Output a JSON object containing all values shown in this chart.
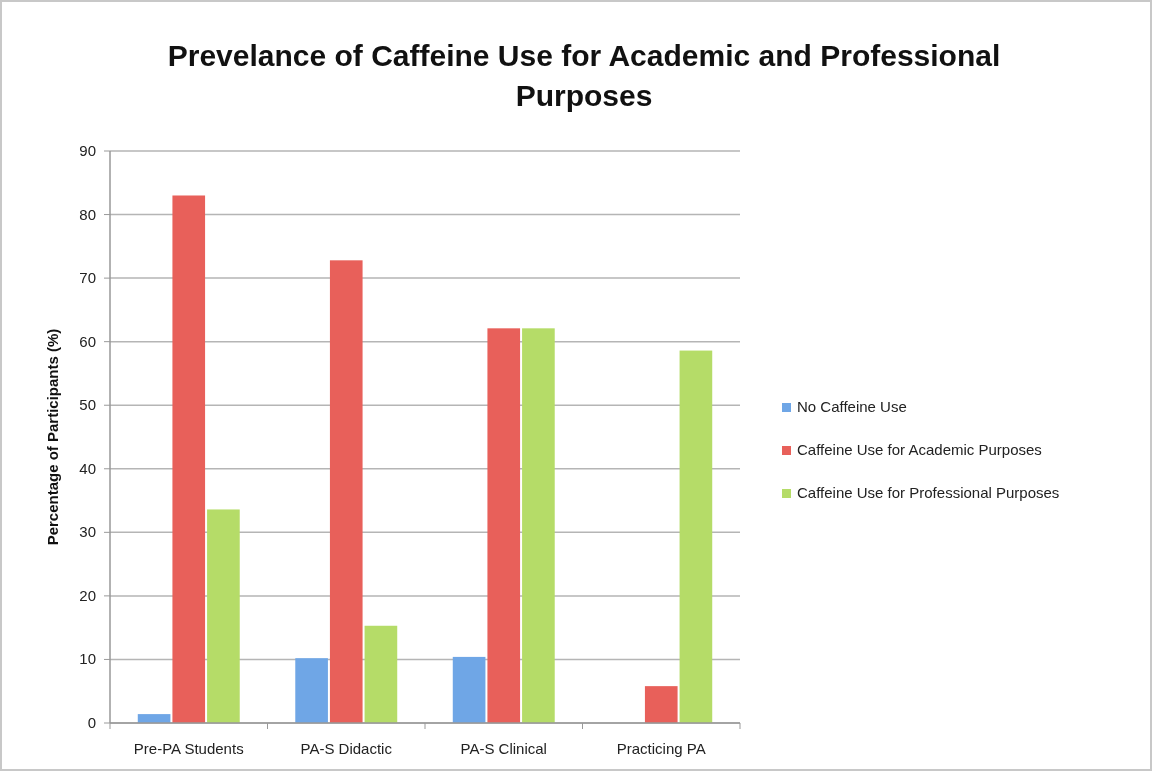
{
  "chart_data": {
    "type": "bar",
    "title": "Prevelance of Caffeine Use for Academic and Professional Purposes",
    "ylabel": "Percentage of Participants (%)",
    "categories": [
      "Pre-PA Students",
      "PA-S Didactic",
      "PA-S Clinical",
      "Practicing PA"
    ],
    "series": [
      {
        "name": "No Caffeine Use",
        "color": "#6fa6e6",
        "values": [
          1.4,
          10.2,
          10.4,
          0
        ]
      },
      {
        "name": "Caffeine Use for Academic Purposes",
        "color": "#e8605a",
        "values": [
          83,
          72.8,
          62.1,
          5.8
        ]
      },
      {
        "name": "Caffeine Use for Professional Purposes",
        "color": "#b5dc68",
        "values": [
          33.6,
          15.3,
          62.1,
          58.6
        ]
      }
    ],
    "ylim": [
      0,
      90
    ],
    "yticks": [
      0,
      10,
      20,
      30,
      40,
      50,
      60,
      70,
      80,
      90
    ],
    "grid": "y",
    "legend": "right"
  }
}
